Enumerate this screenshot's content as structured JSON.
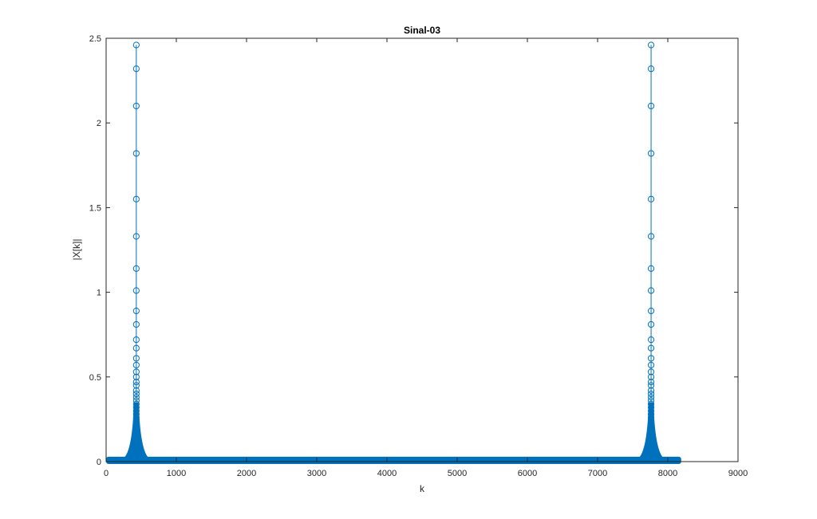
{
  "chart_data": {
    "type": "scatter",
    "style": "stem",
    "title": "Sinal-03",
    "xlabel": "k",
    "ylabel": "|X[k]|",
    "xlim": [
      0,
      9000
    ],
    "ylim": [
      0,
      2.5
    ],
    "xticks": [
      0,
      1000,
      2000,
      3000,
      4000,
      5000,
      6000,
      7000,
      8000,
      9000
    ],
    "yticks": [
      0,
      0.5,
      1,
      1.5,
      2,
      2.5
    ],
    "xtick_labels": [
      "0",
      "1000",
      "2000",
      "3000",
      "4000",
      "5000",
      "6000",
      "7000",
      "8000",
      "9000"
    ],
    "ytick_labels": [
      "0",
      "0.5",
      "1",
      "1.5",
      "2",
      "2.5"
    ],
    "grid": false,
    "series_color": "#0072bd",
    "k_range": [
      0,
      8191
    ],
    "baseline": 0.01,
    "peaks": [
      {
        "k": 430,
        "values": [
          2.46,
          2.32,
          2.1,
          1.82,
          1.55,
          1.33,
          1.14,
          1.01,
          0.89,
          0.81,
          0.72,
          0.67,
          0.61,
          0.57,
          0.53,
          0.5,
          0.47,
          0.45,
          0.42,
          0.4,
          0.38,
          0.36,
          0.34,
          0.32,
          0.3,
          0.28,
          0.26,
          0.24,
          0.22,
          0.2
        ]
      },
      {
        "k": 7762,
        "values": [
          2.46,
          2.32,
          2.1,
          1.82,
          1.55,
          1.33,
          1.14,
          1.01,
          0.89,
          0.81,
          0.72,
          0.67,
          0.61,
          0.57,
          0.53,
          0.5,
          0.47,
          0.45,
          0.42,
          0.4,
          0.38,
          0.36,
          0.34,
          0.32,
          0.3,
          0.28,
          0.26,
          0.24,
          0.22,
          0.2
        ]
      }
    ]
  }
}
